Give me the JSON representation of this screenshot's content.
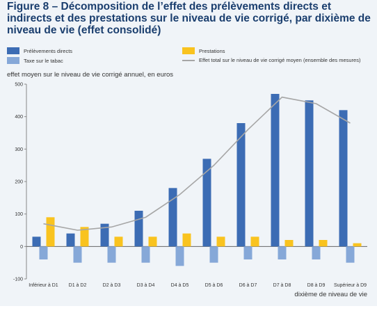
{
  "chart_data": {
    "type": "bar",
    "title": "Figure 8 – Décomposition de l’effet des prélèvements directs et indirects et des prestations sur le niveau de vie corrigé, par dixième de niveau de vie (effet consolidé)",
    "ylabel": "effet moyen sur le niveau de vie corrigé annuel, en euros",
    "xlabel": "dixième de niveau de vie",
    "ylim": [
      -100,
      500
    ],
    "yticks": [
      "500",
      "400",
      "300",
      "200",
      "100",
      "0",
      "-100"
    ],
    "grid": false,
    "categories": [
      "Inférieur à D1",
      "D1 à D2",
      "D2 à D3",
      "D3 à D4",
      "D4 à D5",
      "D5 à D6",
      "D6 à D7",
      "D7 à D8",
      "D8 à D9",
      "Supérieur à D9"
    ],
    "series": [
      {
        "name": "Prélèvements directs",
        "kind": "bar",
        "color": "#3c6cb4",
        "values": [
          30,
          40,
          70,
          110,
          180,
          270,
          380,
          470,
          450,
          420
        ]
      },
      {
        "name": "Prestations",
        "kind": "bar",
        "color": "#f9c31f",
        "values": [
          90,
          60,
          30,
          30,
          40,
          30,
          30,
          20,
          20,
          10
        ]
      },
      {
        "name": "Taxe sur le tabac",
        "kind": "bar",
        "color": "#86a8d8",
        "values": [
          -40,
          -50,
          -50,
          -50,
          -60,
          -50,
          -40,
          -40,
          -40,
          -50
        ]
      },
      {
        "name": "Effet total sur le niveau de vie corrigé moyen (ensemble des mesures)",
        "kind": "line",
        "color": "#a6a6a6",
        "values": [
          70,
          50,
          60,
          90,
          160,
          250,
          360,
          460,
          440,
          380
        ]
      }
    ]
  }
}
